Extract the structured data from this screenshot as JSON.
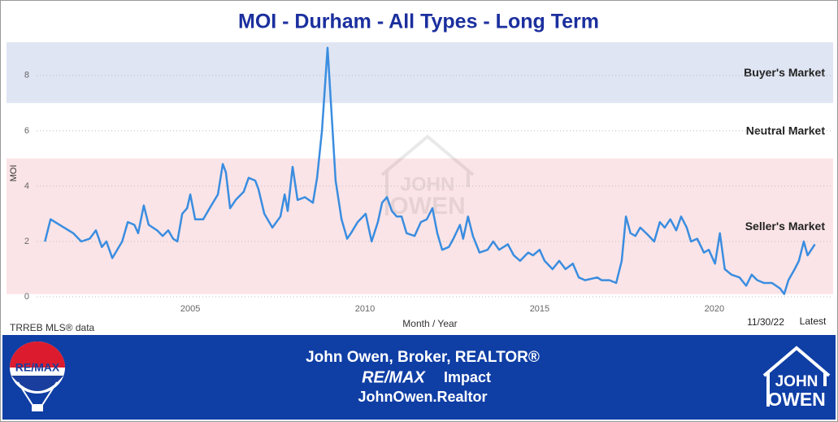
{
  "chart_data": {
    "type": "line",
    "title": "MOI - Durham - All Types - Long Term",
    "y_label": "MOI",
    "x_label": "Month / Year",
    "source": "TRREB MLS® data",
    "latest_date": "11/30/22",
    "latest_label": "Latest",
    "xlim": [
      1999.74,
      2023.4
    ],
    "xticks": [
      2005,
      2010,
      2015,
      2020
    ],
    "ylim": [
      0,
      9.2
    ],
    "yticks": [
      0,
      2,
      4,
      6,
      8
    ],
    "grid": true,
    "bands": [
      {
        "label": "Buyer's Market",
        "from": 7,
        "to": 9.2,
        "color": "#dfe5f3"
      },
      {
        "label": "Neutral Market",
        "from": 5,
        "to": 7,
        "color": "#ffffff"
      },
      {
        "label": "Seller's Market",
        "from": 0.1,
        "to": 5,
        "color": "#fbe4e7"
      }
    ],
    "series": [
      {
        "name": "MOI",
        "color": "#3a8de0",
        "x": [
          2000.84,
          2001.0,
          2001.65,
          2001.88,
          2002.12,
          2002.3,
          2002.47,
          2002.6,
          2002.77,
          2003.05,
          2003.21,
          2003.4,
          2003.51,
          2003.67,
          2003.81,
          2004.05,
          2004.21,
          2004.37,
          2004.51,
          2004.63,
          2004.77,
          2004.91,
          2005.0,
          2005.14,
          2005.37,
          2005.6,
          2005.79,
          2005.93,
          2006.02,
          2006.14,
          2006.3,
          2006.53,
          2006.67,
          2006.86,
          2006.95,
          2007.12,
          2007.35,
          2007.58,
          2007.7,
          2007.79,
          2007.93,
          2008.07,
          2008.28,
          2008.51,
          2008.63,
          2008.77,
          2008.93,
          2009.05,
          2009.16,
          2009.33,
          2009.49,
          2009.6,
          2009.79,
          2010.02,
          2010.19,
          2010.37,
          2010.49,
          2010.63,
          2010.77,
          2010.91,
          2011.05,
          2011.19,
          2011.42,
          2011.6,
          2011.77,
          2011.93,
          2012.07,
          2012.21,
          2012.4,
          2012.53,
          2012.72,
          2012.81,
          2012.95,
          2013.09,
          2013.28,
          2013.51,
          2013.67,
          2013.84,
          2014.09,
          2014.26,
          2014.44,
          2014.67,
          2014.81,
          2015.0,
          2015.14,
          2015.37,
          2015.56,
          2015.74,
          2015.95,
          2016.12,
          2016.3,
          2016.65,
          2016.77,
          2017.0,
          2017.19,
          2017.35,
          2017.47,
          2017.6,
          2017.74,
          2017.88,
          2018.05,
          2018.28,
          2018.44,
          2018.58,
          2018.74,
          2018.91,
          2019.05,
          2019.21,
          2019.33,
          2019.51,
          2019.7,
          2019.84,
          2020.02,
          2020.16,
          2020.3,
          2020.49,
          2020.72,
          2020.91,
          2021.07,
          2021.23,
          2021.42,
          2021.65,
          2021.88,
          2022.0,
          2022.12,
          2022.3,
          2022.42,
          2022.56,
          2022.67,
          2022.88
        ],
        "values": [
          2.0,
          2.8,
          2.3,
          2.0,
          2.1,
          2.4,
          1.8,
          2.0,
          1.4,
          2.0,
          2.7,
          2.6,
          2.3,
          3.3,
          2.6,
          2.4,
          2.2,
          2.4,
          2.1,
          2.0,
          3.0,
          3.2,
          3.7,
          2.8,
          2.8,
          3.3,
          3.7,
          4.8,
          4.5,
          3.2,
          3.5,
          3.8,
          4.3,
          4.2,
          3.9,
          3.0,
          2.5,
          2.9,
          3.7,
          3.1,
          4.7,
          3.5,
          3.6,
          3.4,
          4.3,
          6.0,
          9.0,
          6.5,
          4.2,
          2.8,
          2.1,
          2.3,
          2.7,
          3.0,
          2.0,
          2.7,
          3.4,
          3.6,
          3.1,
          2.9,
          2.9,
          2.3,
          2.2,
          2.7,
          2.8,
          3.2,
          2.3,
          1.7,
          1.8,
          2.1,
          2.6,
          2.1,
          2.9,
          2.2,
          1.6,
          1.7,
          2.0,
          1.7,
          1.9,
          1.5,
          1.3,
          1.6,
          1.5,
          1.7,
          1.3,
          1.0,
          1.3,
          1.0,
          1.2,
          0.7,
          0.6,
          0.7,
          0.6,
          0.6,
          0.5,
          1.3,
          2.9,
          2.3,
          2.2,
          2.5,
          2.3,
          2.0,
          2.7,
          2.5,
          2.8,
          2.4,
          2.9,
          2.5,
          2.0,
          2.1,
          1.6,
          1.7,
          1.2,
          2.3,
          1.0,
          0.8,
          0.7,
          0.4,
          0.8,
          0.6,
          0.5,
          0.5,
          0.3,
          0.1,
          0.6,
          1.0,
          1.3,
          2.0,
          1.5,
          1.9
        ]
      }
    ]
  },
  "footer": {
    "line1": "John Owen, Broker, REALTOR®",
    "brand": "RE/MAX",
    "brand_rest": "Impact",
    "website": "JohnOwen.Realtor",
    "balloon_text": "RE/MAX",
    "logo_lines": [
      "JOHN",
      "OWEN"
    ]
  }
}
